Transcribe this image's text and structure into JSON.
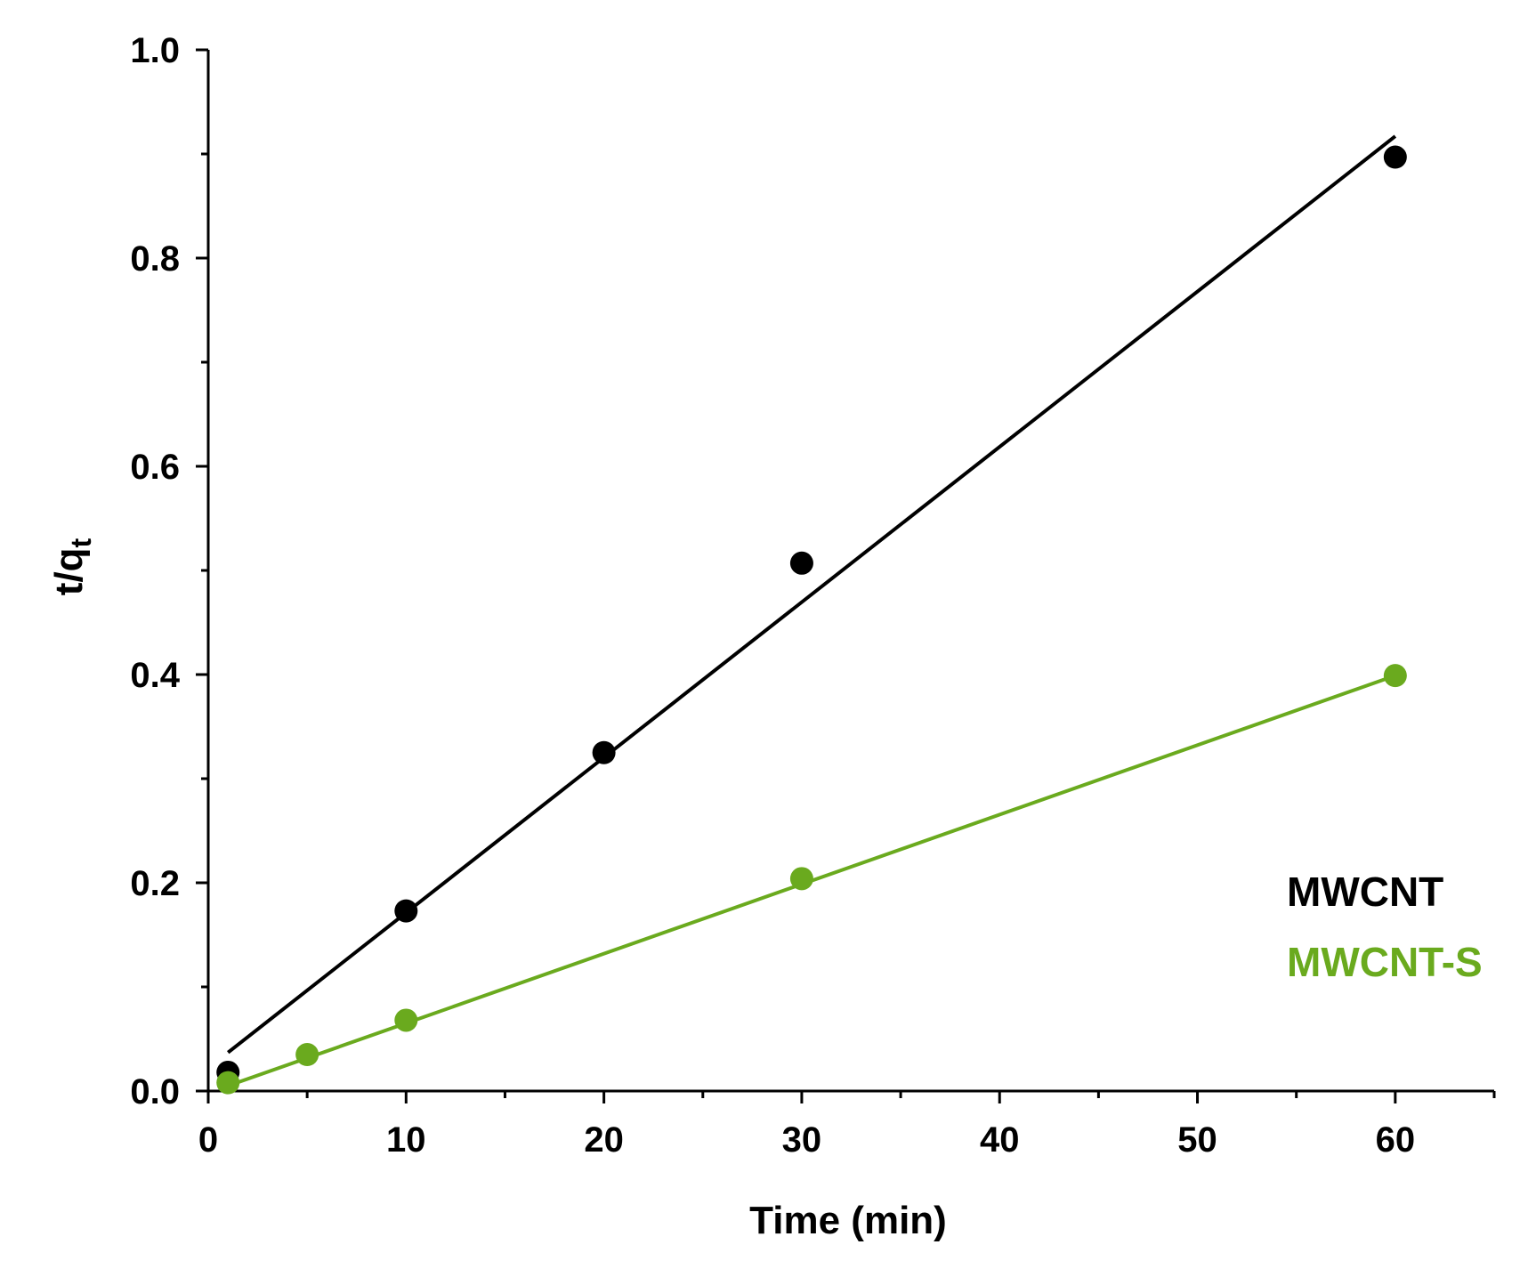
{
  "chart_data": {
    "type": "scatter",
    "title": "",
    "xlabel": "Time (min)",
    "ylabel": "t/q",
    "ylabel_subscript": "t",
    "xlim": [
      0,
      65
    ],
    "ylim": [
      0.0,
      1.0
    ],
    "x_major_ticks": [
      0,
      10,
      20,
      30,
      40,
      50,
      60
    ],
    "x_tick_labels": [
      "0",
      "10",
      "20",
      "30",
      "40",
      "50",
      "60"
    ],
    "x_minor_ticks": [
      5,
      15,
      25,
      35,
      45,
      55,
      65
    ],
    "y_major_ticks": [
      0.0,
      0.2,
      0.4,
      0.6,
      0.8,
      1.0
    ],
    "y_tick_labels": [
      "0.0",
      "0.2",
      "0.4",
      "0.6",
      "0.8",
      "1.0"
    ],
    "y_minor_ticks": [
      0.1,
      0.3,
      0.5,
      0.7,
      0.9
    ],
    "grid": false,
    "legend_position": "bottom-right",
    "series": [
      {
        "name": "MWCNT",
        "color": "#000000",
        "points": [
          {
            "x": 1,
            "y": 0.018
          },
          {
            "x": 10,
            "y": 0.173
          },
          {
            "x": 20,
            "y": 0.325
          },
          {
            "x": 30,
            "y": 0.507
          },
          {
            "x": 60,
            "y": 0.897
          }
        ],
        "fit_line": {
          "x": [
            1,
            60
          ],
          "y": [
            0.037,
            0.917
          ]
        }
      },
      {
        "name": "MWCNT-S",
        "color": "#6aaa1e",
        "points": [
          {
            "x": 1,
            "y": 0.008
          },
          {
            "x": 5,
            "y": 0.035
          },
          {
            "x": 10,
            "y": 0.068
          },
          {
            "x": 30,
            "y": 0.204
          },
          {
            "x": 60,
            "y": 0.399
          }
        ],
        "fit_line": {
          "x": [
            1,
            60
          ],
          "y": [
            0.005,
            0.399
          ]
        }
      }
    ]
  }
}
